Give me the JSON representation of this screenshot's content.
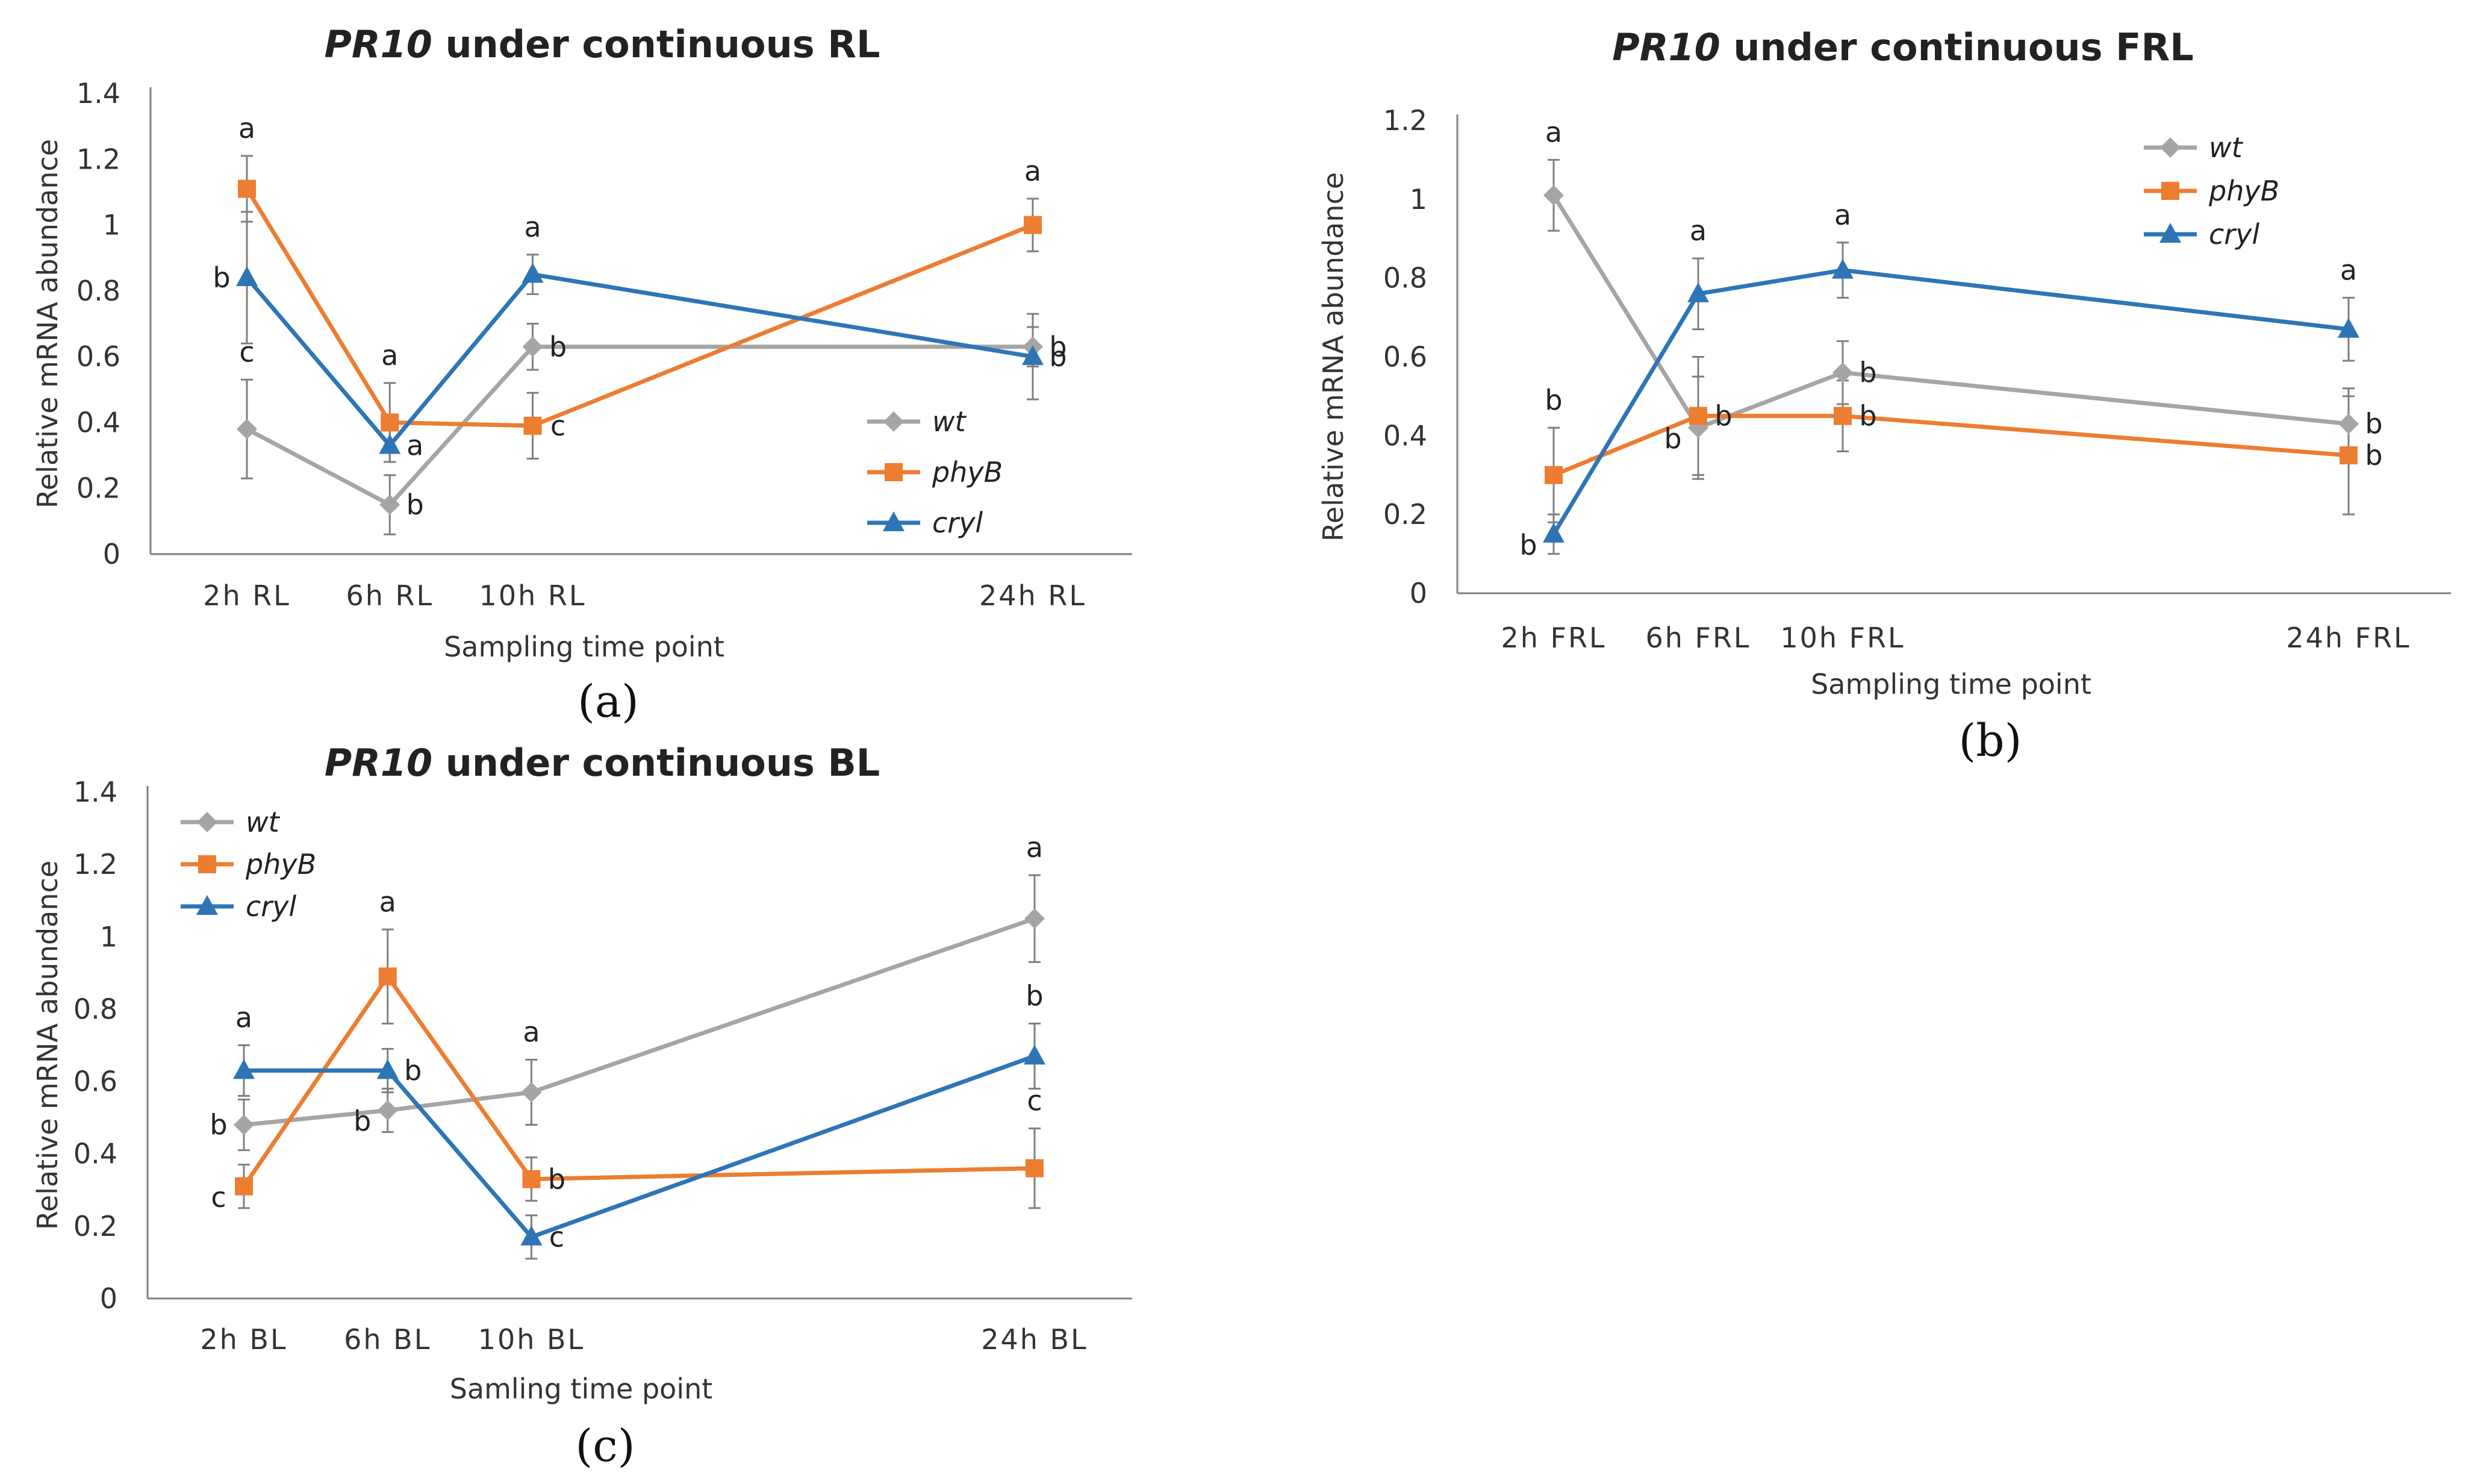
{
  "chart_data": [
    {
      "id": "a",
      "type": "line",
      "title_gene": "PR10",
      "title_rest": " under continuous RL",
      "caption": "(a)",
      "xlabel": "Sampling time point",
      "ylabel": "Relative mRNA abundance",
      "ylim": [
        0,
        1.4
      ],
      "yticks": [
        "0",
        "0.2",
        "0.4",
        "0.6",
        "0.8",
        "1",
        "1.2",
        "1.4"
      ],
      "categories": [
        "2h RL",
        "6h RL",
        "10h RL",
        "24h RL"
      ],
      "x": [
        2,
        6,
        10,
        24
      ],
      "legend_position": "right-middle",
      "series": [
        {
          "name": "wt",
          "color": "#A5A5A5",
          "marker": "diamond",
          "values": [
            0.38,
            0.15,
            0.63,
            0.63
          ],
          "errors": [
            0.15,
            0.09,
            0.07,
            0.06
          ],
          "letters": [
            "c",
            "b",
            "b",
            "b"
          ]
        },
        {
          "name": "phyB",
          "color": "#ED7D31",
          "marker": "square",
          "values": [
            1.11,
            0.4,
            0.39,
            1.0
          ],
          "errors": [
            0.1,
            0.12,
            0.1,
            0.08
          ],
          "letters": [
            "a",
            "a",
            "c",
            "a"
          ]
        },
        {
          "name": "cryl",
          "color": "#2E75B6",
          "marker": "triangle",
          "values": [
            0.84,
            0.33,
            0.85,
            0.6
          ],
          "errors": [
            0.2,
            0.05,
            0.06,
            0.13
          ],
          "letters": [
            "b",
            "a",
            "a",
            "b"
          ]
        }
      ]
    },
    {
      "id": "b",
      "type": "line",
      "title_gene": "PR10",
      "title_rest": " under continuous FRL",
      "caption": "(b)",
      "xlabel": "Sampling time point",
      "ylabel": "Relative mRNA abundance",
      "ylim": [
        0,
        1.2
      ],
      "yticks": [
        "0",
        "0.2",
        "0.4",
        "0.6",
        "0.8",
        "1",
        "1.2"
      ],
      "categories": [
        "2h FRL",
        "6h FRL",
        "10h FRL",
        "24h FRL"
      ],
      "x": [
        2,
        6,
        10,
        24
      ],
      "legend_position": "top-right",
      "series": [
        {
          "name": "wt",
          "color": "#A5A5A5",
          "marker": "diamond",
          "values": [
            1.01,
            0.42,
            0.56,
            0.43
          ],
          "errors": [
            0.09,
            0.13,
            0.08,
            0.09
          ],
          "letters": [
            "a",
            "b",
            "b",
            "b"
          ]
        },
        {
          "name": "phyB",
          "color": "#ED7D31",
          "marker": "square",
          "values": [
            0.3,
            0.45,
            0.45,
            0.35
          ],
          "errors": [
            0.12,
            0.15,
            0.09,
            0.15
          ],
          "letters": [
            "b",
            "b",
            "b",
            "b"
          ]
        },
        {
          "name": "cryl",
          "color": "#2E75B6",
          "marker": "triangle",
          "values": [
            0.15,
            0.76,
            0.82,
            0.67
          ],
          "errors": [
            0.05,
            0.09,
            0.07,
            0.08
          ],
          "letters": [
            "b",
            "a",
            "a",
            "a"
          ]
        }
      ]
    },
    {
      "id": "c",
      "type": "line",
      "title_gene": "PR10",
      "title_rest": " under continuous BL",
      "caption": "(c)",
      "xlabel": "Samling time point",
      "ylabel": "Relative mRNA abundance",
      "ylim": [
        0,
        1.4
      ],
      "yticks": [
        "0",
        "0.2",
        "0.4",
        "0.6",
        "0.8",
        "1",
        "1.2",
        "1.4"
      ],
      "categories": [
        "2h BL",
        "6h BL",
        "10h BL",
        "24h BL"
      ],
      "x": [
        2,
        6,
        10,
        24
      ],
      "legend_position": "top-left",
      "series": [
        {
          "name": "wt",
          "color": "#A5A5A5",
          "marker": "diamond",
          "values": [
            0.48,
            0.52,
            0.57,
            1.05
          ],
          "errors": [
            0.07,
            0.06,
            0.09,
            0.12
          ],
          "letters": [
            "b",
            "b",
            "a",
            "a"
          ]
        },
        {
          "name": "phyB",
          "color": "#ED7D31",
          "marker": "square",
          "values": [
            0.31,
            0.89,
            0.33,
            0.36
          ],
          "errors": [
            0.06,
            0.13,
            0.06,
            0.11
          ],
          "letters": [
            "c",
            "a",
            "b",
            "c"
          ]
        },
        {
          "name": "cryl",
          "color": "#2E75B6",
          "marker": "triangle",
          "values": [
            0.63,
            0.63,
            0.17,
            0.67
          ],
          "errors": [
            0.07,
            0.06,
            0.06,
            0.09
          ],
          "letters": [
            "a",
            "b",
            "c",
            "b"
          ]
        }
      ]
    }
  ]
}
